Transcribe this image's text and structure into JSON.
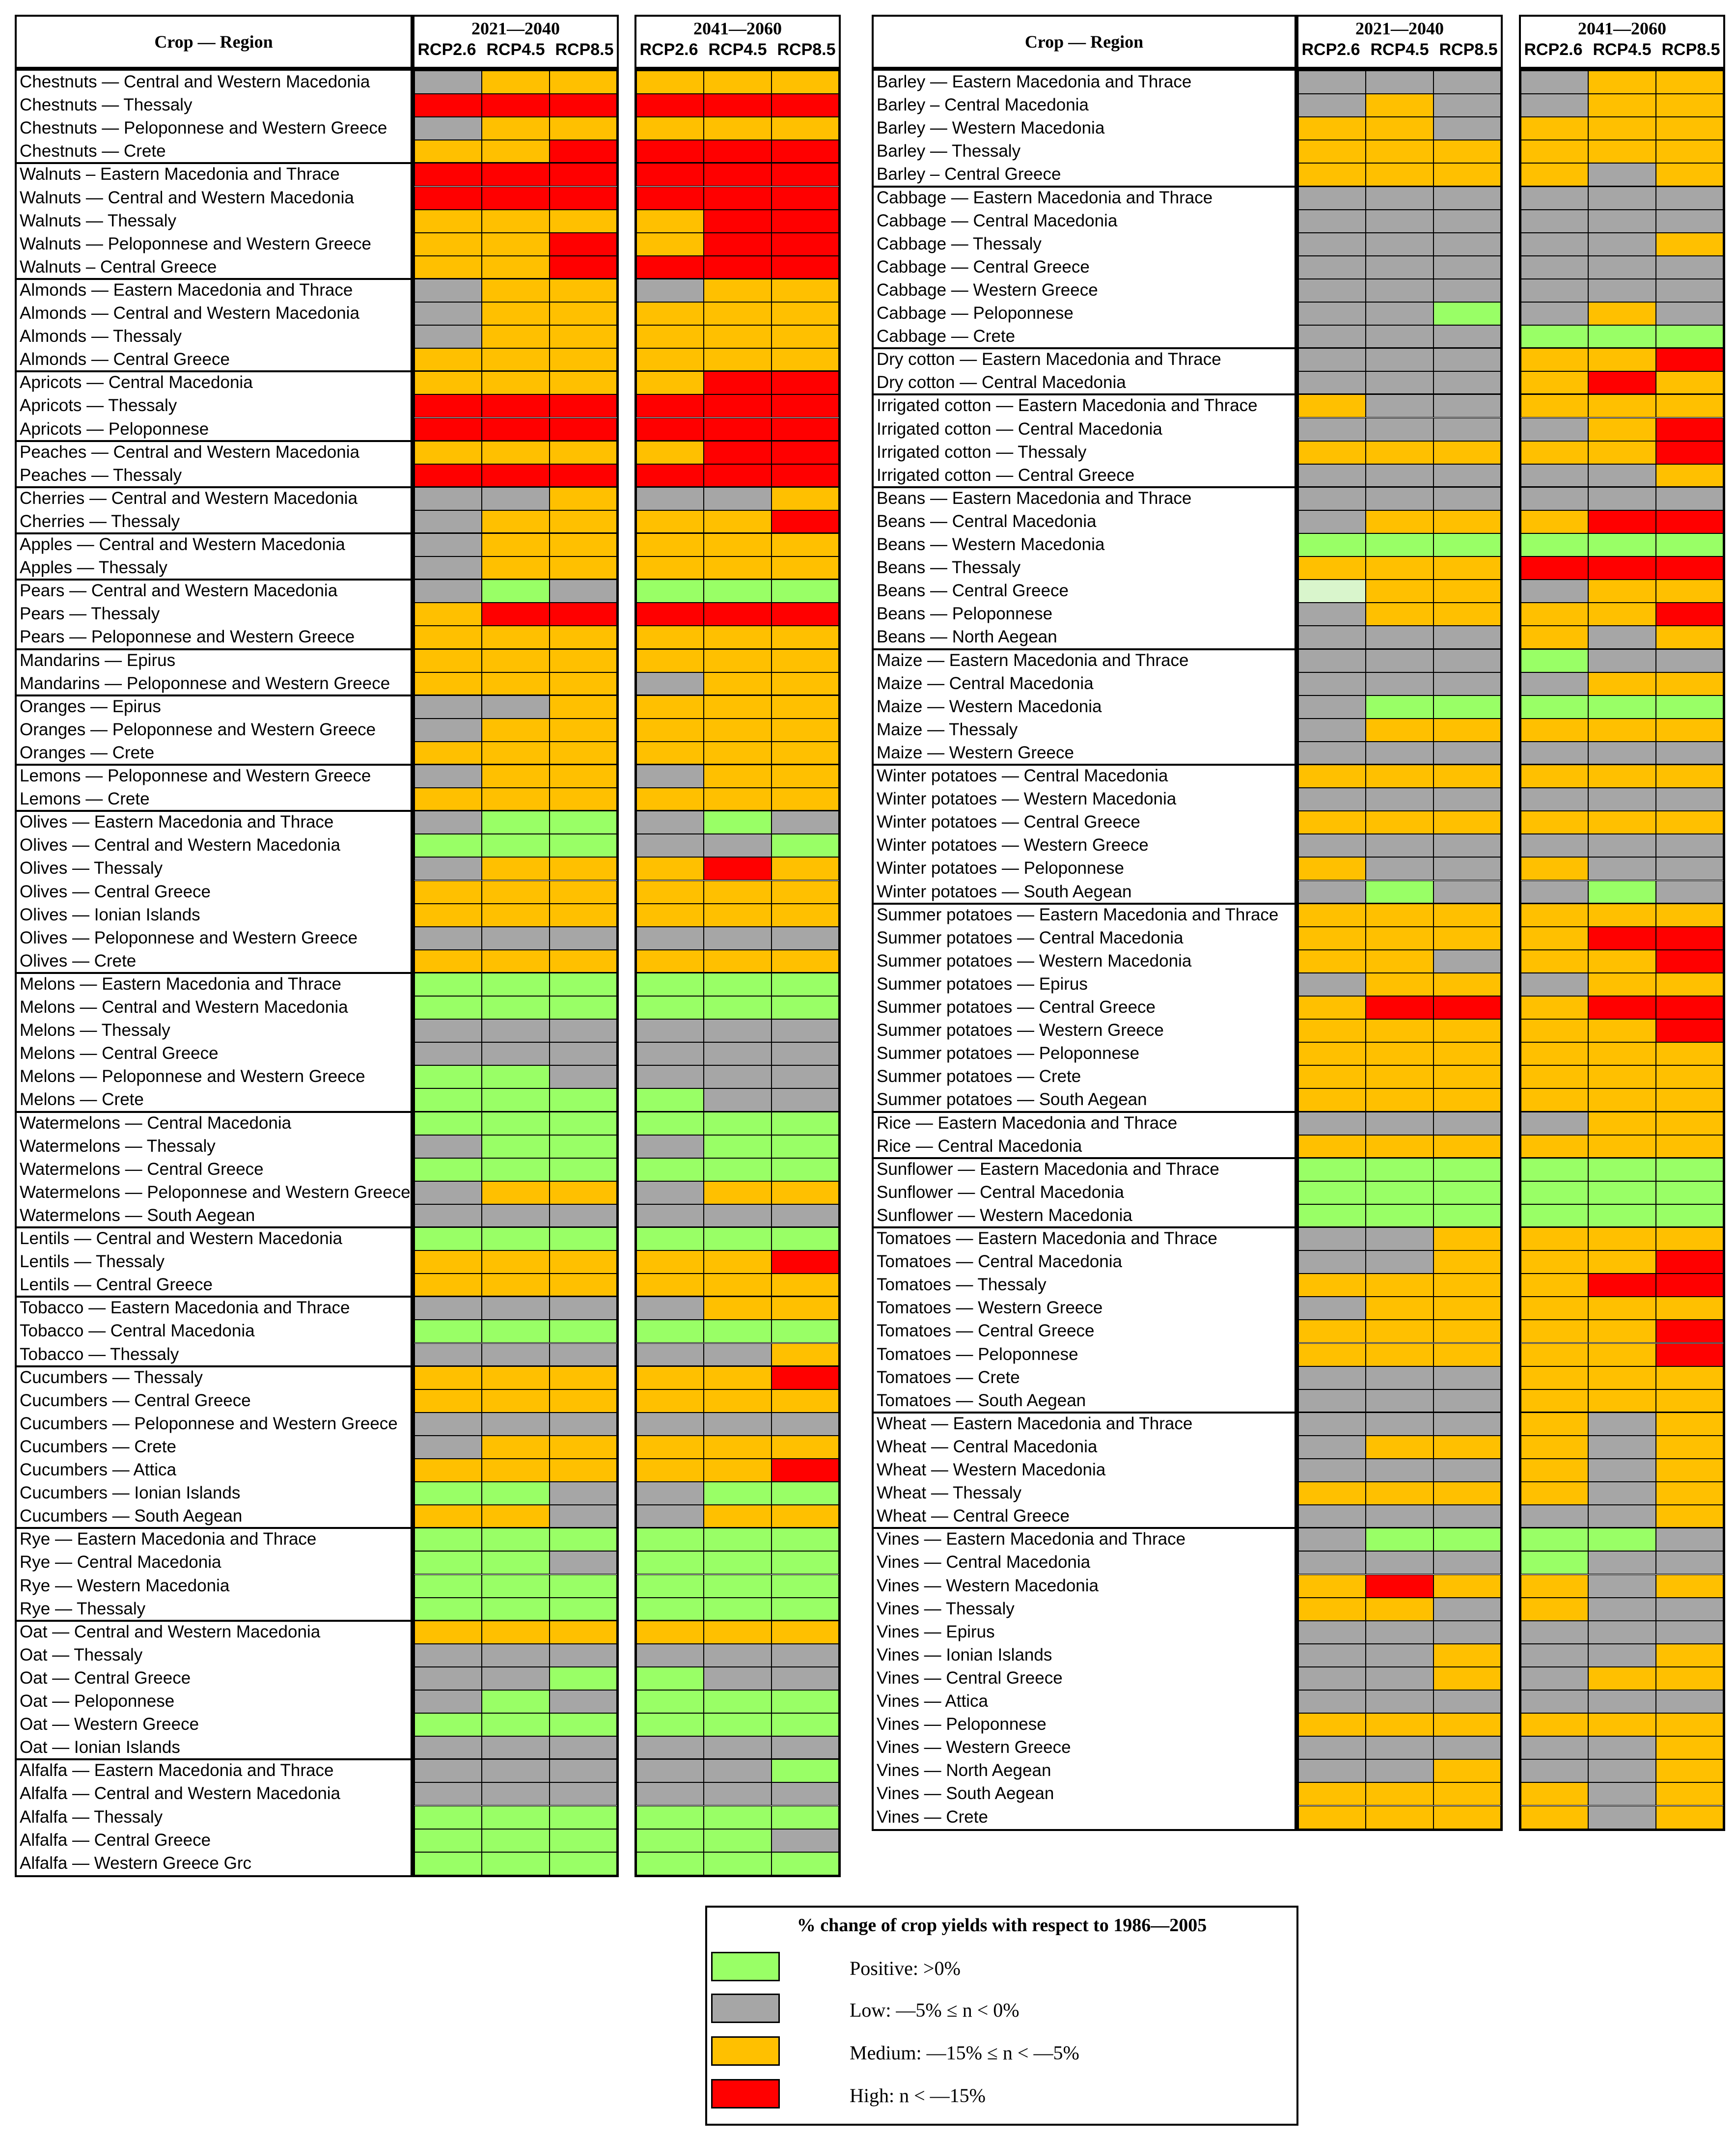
{
  "chart_data": {
    "type": "table",
    "column_header": "Crop — Region",
    "periods": [
      "2021—2040",
      "2041—2060"
    ],
    "scenarios": [
      "RCP2.6",
      "RCP4.5",
      "RCP8.5"
    ],
    "code_key": {
      "P": "Positive",
      "L": "Low",
      "M": "Medium",
      "H": "High",
      "V": "Positive (light)"
    },
    "colors": {
      "P": "#99ff66",
      "L": "#a6a6a6",
      "M": "#ffc000",
      "H": "#ff0000",
      "V": "#d9f5cc"
    },
    "legend": {
      "title": "% change of crop yields with respect to 1986—2005",
      "items": [
        {
          "code": "P",
          "label": "Positive: >0%"
        },
        {
          "code": "L",
          "label": "Low: —5% ≤ n < 0%"
        },
        {
          "code": "M",
          "label": "Medium: —15% ≤ n < —5%"
        },
        {
          "code": "H",
          "label": "High: n < —15%"
        }
      ]
    },
    "panels": [
      {
        "groups": [
          [
            [
              "Chestnuts — Central and Western Macedonia",
              "LMM",
              "MMM"
            ],
            [
              "Chestnuts — Thessaly",
              "HHH",
              "HHH"
            ],
            [
              "Chestnuts — Peloponnese and Western Greece",
              "LMM",
              "MMM"
            ],
            [
              "Chestnuts — Crete",
              "MMH",
              "HHH"
            ]
          ],
          [
            [
              "Walnuts – Eastern Macedonia and Thrace",
              "HHH",
              "HHH"
            ],
            [
              "Walnuts — Central and Western Macedonia",
              "HHH",
              "HHH"
            ],
            [
              "Walnuts — Thessaly",
              "MMM",
              "MHH"
            ],
            [
              "Walnuts — Peloponnese and Western Greece",
              "MMH",
              "MHH"
            ],
            [
              "Walnuts – Central Greece",
              "MMH",
              "HHH"
            ]
          ],
          [
            [
              "Almonds — Eastern Macedonia and Thrace",
              "LMM",
              "LMM"
            ],
            [
              "Almonds — Central and Western Macedonia",
              "LMM",
              "MMM"
            ],
            [
              "Almonds — Thessaly",
              "LMM",
              "MMM"
            ],
            [
              "Almonds — Central Greece",
              "MMM",
              "MMM"
            ]
          ],
          [
            [
              "Apricots — Central Macedonia",
              "MMM",
              "MHH"
            ],
            [
              "Apricots — Thessaly",
              "HHH",
              "HHH"
            ],
            [
              "Apricots — Peloponnese",
              "HHH",
              "HHH"
            ]
          ],
          [
            [
              "Peaches — Central and Western Macedonia",
              "MMM",
              "MHH"
            ],
            [
              "Peaches — Thessaly",
              "HHH",
              "HHH"
            ]
          ],
          [
            [
              "Cherries — Central and Western Macedonia",
              "LLM",
              "LLM"
            ],
            [
              "Cherries — Thessaly",
              "LMM",
              "MMH"
            ]
          ],
          [
            [
              "Apples — Central and Western Macedonia",
              "LMM",
              "MMM"
            ],
            [
              "Apples — Thessaly",
              "LMM",
              "MMM"
            ]
          ],
          [
            [
              "Pears — Central and Western Macedonia",
              "LPL",
              "PPP"
            ],
            [
              "Pears — Thessaly",
              "MHH",
              "HHH"
            ],
            [
              "Pears — Peloponnese and Western Greece",
              "MMM",
              "MMM"
            ]
          ],
          [
            [
              "Mandarins — Epirus",
              "MMM",
              "MMM"
            ],
            [
              "Mandarins — Peloponnese and Western Greece",
              "MMM",
              "LMM"
            ]
          ],
          [
            [
              "Oranges — Epirus",
              "LLM",
              "MMM"
            ],
            [
              "Oranges — Peloponnese and Western Greece",
              "LMM",
              "MMM"
            ],
            [
              "Oranges — Crete",
              "MMM",
              "MMM"
            ]
          ],
          [
            [
              "Lemons — Peloponnese and Western Greece",
              "LMM",
              "LMM"
            ],
            [
              "Lemons — Crete",
              "MMM",
              "MMM"
            ]
          ],
          [
            [
              "Olives — Eastern Macedonia and Thrace",
              "LPP",
              "LPL"
            ],
            [
              "Olives — Central and Western Macedonia",
              "PPP",
              "LLP"
            ],
            [
              "Olives — Thessaly",
              "LMM",
              "MHM"
            ],
            [
              "Olives — Central Greece",
              "MMM",
              "MMM"
            ],
            [
              "Olives — Ionian Islands",
              "MMM",
              "MMM"
            ],
            [
              "Olives — Peloponnese and Western Greece",
              "LLL",
              "LLL"
            ],
            [
              "Olives — Crete",
              "MMM",
              "MMM"
            ]
          ],
          [
            [
              "Melons — Eastern Macedonia and Thrace",
              "PPP",
              "PPP"
            ],
            [
              "Melons — Central and Western Macedonia",
              "PPP",
              "PPP"
            ],
            [
              "Melons — Thessaly",
              "LLL",
              "LLL"
            ],
            [
              "Melons — Central Greece",
              "LLL",
              "LLL"
            ],
            [
              "Melons — Peloponnese and Western Greece",
              "PPL",
              "LLL"
            ],
            [
              "Melons — Crete",
              "PPP",
              "PLL"
            ]
          ],
          [
            [
              "Watermelons — Central Macedonia",
              "PPP",
              "PPP"
            ],
            [
              "Watermelons — Thessaly",
              "LPP",
              "LPP"
            ],
            [
              "Watermelons — Central Greece",
              "PPP",
              "PPP"
            ],
            [
              "Watermelons — Peloponnese and Western Greece",
              "LMM",
              "LMM"
            ],
            [
              "Watermelons — South Aegean",
              "LLL",
              "LLL"
            ]
          ],
          [
            [
              "Lentils — Central and Western Macedonia",
              "PPP",
              "PPP"
            ],
            [
              "Lentils — Thessaly",
              "MMM",
              "MMH"
            ],
            [
              "Lentils — Central Greece",
              "MMM",
              "MMM"
            ]
          ],
          [
            [
              "Tobacco — Eastern Macedonia and Thrace",
              "LLL",
              "LMM"
            ],
            [
              "Tobacco — Central Macedonia",
              "PPP",
              "PPP"
            ],
            [
              "Tobacco — Thessaly",
              "LLL",
              "LLM"
            ]
          ],
          [
            [
              "Cucumbers — Thessaly",
              "MMM",
              "MMH"
            ],
            [
              "Cucumbers — Central Greece",
              "MMM",
              "MMM"
            ],
            [
              "Cucumbers — Peloponnese and Western Greece",
              "LLL",
              "LLL"
            ],
            [
              "Cucumbers — Crete",
              "LMM",
              "MMM"
            ],
            [
              "Cucumbers — Attica",
              "MMM",
              "MMH"
            ],
            [
              "Cucumbers — Ionian Islands",
              "PPL",
              "LPP"
            ],
            [
              "Cucumbers — South Aegean",
              "MML",
              "LMM"
            ]
          ],
          [
            [
              "Rye — Eastern Macedonia and Thrace",
              "PPP",
              "PPP"
            ],
            [
              "Rye — Central Macedonia",
              "PPL",
              "PPP"
            ],
            [
              "Rye — Western Macedonia",
              "PPP",
              "PPP"
            ],
            [
              "Rye — Thessaly",
              "PPP",
              "PPP"
            ]
          ],
          [
            [
              "Oat — Central and Western Macedonia",
              "MMM",
              "MMM"
            ],
            [
              "Oat — Thessaly",
              "LLL",
              "LLL"
            ],
            [
              "Oat — Central Greece",
              "LLP",
              "PLL"
            ],
            [
              "Oat — Peloponnese",
              "LPL",
              "PPP"
            ],
            [
              "Oat — Western Greece",
              "PPP",
              "PPP"
            ],
            [
              "Oat — Ionian Islands",
              "LLL",
              "LLL"
            ]
          ],
          [
            [
              "Alfalfa — Eastern Macedonia and Thrace",
              "LLL",
              "LLP"
            ],
            [
              "Alfalfa — Central and Western Macedonia",
              "LLL",
              "LLL"
            ],
            [
              "Alfalfa — Thessaly",
              "PPP",
              "PPP"
            ],
            [
              "Alfalfa — Central Greece",
              "PPP",
              "PPL"
            ],
            [
              "Alfalfa — Western Greece Grc",
              "PPP",
              "PPP"
            ]
          ]
        ]
      },
      {
        "groups": [
          [
            [
              "Barley — Eastern Macedonia and Thrace",
              "LLL",
              "LMM"
            ],
            [
              "Barley – Central Macedonia",
              "LML",
              "LMM"
            ],
            [
              "Barley — Western Macedonia",
              "MML",
              "MMM"
            ],
            [
              "Barley — Thessaly",
              "MMM",
              "MMM"
            ],
            [
              "Barley – Central Greece",
              "MMM",
              "MLM"
            ]
          ],
          [
            [
              "Cabbage — Eastern Macedonia and Thrace",
              "LLL",
              "LLL"
            ],
            [
              "Cabbage — Central Macedonia",
              "LLL",
              "LLL"
            ],
            [
              "Cabbage — Thessaly",
              "LLL",
              "LLM"
            ],
            [
              "Cabbage — Central Greece",
              "LLL",
              "LLL"
            ],
            [
              "Cabbage — Western Greece",
              "LLL",
              "LLL"
            ],
            [
              "Cabbage — Peloponnese",
              "LLP",
              "LML"
            ],
            [
              "Cabbage — Crete",
              "LLL",
              "PPP"
            ]
          ],
          [
            [
              "Dry cotton — Eastern Macedonia and Thrace",
              "LLL",
              "MMH"
            ],
            [
              "Dry cotton — Central Macedonia",
              "LLL",
              "MHM"
            ]
          ],
          [
            [
              "Irrigated cotton — Eastern Macedonia and Thrace",
              "MLL",
              "MMM"
            ],
            [
              "Irrigated cotton — Central Macedonia",
              "LLL",
              "LMH"
            ],
            [
              "Irrigated cotton — Thessaly",
              "MMM",
              "MMH"
            ],
            [
              "Irrigated cotton — Central Greece",
              "LLL",
              "LLM"
            ]
          ],
          [
            [
              "Beans — Eastern Macedonia and Thrace",
              "LLL",
              "LLL"
            ],
            [
              "Beans — Central Macedonia",
              "LMM",
              "MHH"
            ],
            [
              "Beans — Western Macedonia",
              "PPP",
              "PPP"
            ],
            [
              "Beans — Thessaly",
              "MMM",
              "HHH"
            ],
            [
              "Beans — Central Greece",
              "VMM",
              "LMM"
            ],
            [
              "Beans — Peloponnese",
              "LMM",
              "MMH"
            ],
            [
              "Beans — North Aegean",
              "LLL",
              "MLM"
            ]
          ],
          [
            [
              "Maize — Eastern Macedonia and Thrace",
              "LLL",
              "PLL"
            ],
            [
              "Maize — Central Macedonia",
              "LLL",
              "LMM"
            ],
            [
              "Maize — Western Macedonia",
              "LPP",
              "PPP"
            ],
            [
              "Maize — Thessaly",
              "LMM",
              "MMM"
            ],
            [
              "Maize — Western Greece",
              "LLL",
              "LLL"
            ]
          ],
          [
            [
              "Winter potatoes — Central Macedonia",
              "MMM",
              "MMM"
            ],
            [
              "Winter potatoes — Western Macedonia",
              "LLL",
              "LLL"
            ],
            [
              "Winter potatoes — Central Greece",
              "MMM",
              "MMM"
            ],
            [
              "Winter potatoes — Western Greece",
              "LLL",
              "LLL"
            ],
            [
              "Winter potatoes — Peloponnese",
              "MLL",
              "MLL"
            ],
            [
              "Winter potatoes — South Aegean",
              "LPL",
              "LPL"
            ]
          ],
          [
            [
              "Summer potatoes — Eastern Macedonia and Thrace",
              "MMM",
              "MMM"
            ],
            [
              "Summer potatoes — Central Macedonia",
              "MMM",
              "MHH"
            ],
            [
              "Summer potatoes — Western Macedonia",
              "MML",
              "MMH"
            ],
            [
              "Summer potatoes — Epirus",
              "LMM",
              "LMM"
            ],
            [
              "Summer potatoes — Central Greece",
              "MHH",
              "MHH"
            ],
            [
              "Summer potatoes — Western Greece",
              "MMM",
              "MMH"
            ],
            [
              "Summer potatoes — Peloponnese",
              "MMM",
              "MMM"
            ],
            [
              "Summer potatoes — Crete",
              "MMM",
              "MMM"
            ],
            [
              "Summer potatoes — South Aegean",
              "MMM",
              "MMM"
            ]
          ],
          [
            [
              "Rice — Eastern Macedonia and Thrace",
              "LLL",
              "LMM"
            ],
            [
              "Rice — Central Macedonia",
              "MMM",
              "MMM"
            ]
          ],
          [
            [
              "Sunflower — Eastern Macedonia and Thrace",
              "PPP",
              "PPP"
            ],
            [
              "Sunflower — Central Macedonia",
              "PPP",
              "PPP"
            ],
            [
              "Sunflower — Western Macedonia",
              "PPP",
              "PPP"
            ]
          ],
          [
            [
              "Tomatoes — Eastern Macedonia and Thrace",
              "LLM",
              "MMM"
            ],
            [
              "Tomatoes — Central Macedonia",
              "LLM",
              "MMH"
            ],
            [
              "Tomatoes — Thessaly",
              "MMM",
              "MHH"
            ],
            [
              "Tomatoes — Western Greece",
              "LMM",
              "MMM"
            ],
            [
              "Tomatoes — Central Greece",
              "MMM",
              "MMH"
            ],
            [
              "Tomatoes — Peloponnese",
              "MMM",
              "MMH"
            ],
            [
              "Tomatoes — Crete",
              "LLL",
              "MMM"
            ],
            [
              "Tomatoes — South Aegean",
              "LLL",
              "MMM"
            ]
          ],
          [
            [
              "Wheat — Eastern Macedonia and Thrace",
              "LLL",
              "MLM"
            ],
            [
              "Wheat — Central Macedonia",
              "LMM",
              "MLM"
            ],
            [
              "Wheat — Western Macedonia",
              "LLL",
              "MLM"
            ],
            [
              "Wheat — Thessaly",
              "MMM",
              "MLM"
            ],
            [
              "Wheat — Central Greece",
              "LLL",
              "LLM"
            ]
          ],
          [
            [
              "Vines — Eastern Macedonia and Thrace",
              "LPP",
              "PPL"
            ],
            [
              "Vines — Central Macedonia",
              "LLL",
              "PLL"
            ],
            [
              "Vines — Western Macedonia",
              "MHM",
              "MLM"
            ],
            [
              "Vines — Thessaly",
              "MML",
              "MLL"
            ],
            [
              "Vines — Epirus",
              "LLL",
              "LLL"
            ],
            [
              "Vines — Ionian Islands",
              "LLM",
              "LLM"
            ],
            [
              "Vines — Central Greece",
              "LLM",
              "LMM"
            ],
            [
              "Vines — Attica",
              "LLL",
              "LLL"
            ],
            [
              "Vines — Peloponnese",
              "MMM",
              "MMM"
            ],
            [
              "Vines — Western Greece",
              "LLL",
              "LLM"
            ],
            [
              "Vines — North Aegean",
              "LLM",
              "LLM"
            ],
            [
              "Vines — South Aegean",
              "MMM",
              "MLM"
            ],
            [
              "Vines — Crete",
              "MMM",
              "MLM"
            ]
          ]
        ]
      }
    ]
  }
}
